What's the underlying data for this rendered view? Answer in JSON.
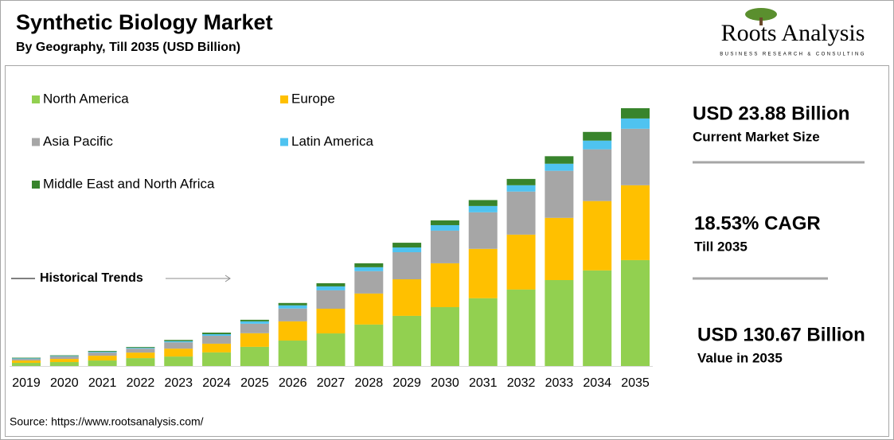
{
  "chart_data": {
    "type": "stacked_bar",
    "title": "Synthetic Biology Market",
    "subtitle": "By Geography, Till 2035 (USD Billion)",
    "logo": {
      "name": "Roots Analysis",
      "tagline": "BUSINESS RESEARCH & CONSULTING"
    },
    "categories": [
      "2019",
      "2020",
      "2021",
      "2022",
      "2023",
      "2024",
      "2025",
      "2026",
      "2027",
      "2028",
      "2029",
      "2030",
      "2031",
      "2032",
      "2033",
      "2034",
      "2035"
    ],
    "series": [
      {
        "name": "North America",
        "color": "#92d050",
        "values": [
          1.6,
          2.0,
          2.8,
          4.0,
          4.8,
          6.9,
          9.7,
          12.9,
          16.5,
          21.0,
          25.4,
          29.8,
          34.3,
          38.7,
          43.5,
          48.4,
          53.6
        ]
      },
      {
        "name": "Europe",
        "color": "#ffc000",
        "values": [
          1.2,
          1.6,
          2.4,
          2.8,
          4.0,
          4.4,
          6.9,
          9.7,
          12.5,
          15.7,
          18.5,
          22.2,
          25.0,
          27.8,
          31.5,
          35.1,
          37.9
        ]
      },
      {
        "name": "Asia Pacific",
        "color": "#a6a6a6",
        "values": [
          0.8,
          1.2,
          1.6,
          2.0,
          3.2,
          4.0,
          4.8,
          6.5,
          9.3,
          11.3,
          13.7,
          16.5,
          18.5,
          21.8,
          23.8,
          26.2,
          28.6
        ]
      },
      {
        "name": "Latin America",
        "color": "#4fc3f0",
        "values": [
          0.3,
          0.3,
          0.4,
          0.4,
          0.6,
          0.8,
          1.2,
          1.6,
          2.0,
          2.0,
          2.4,
          2.8,
          3.2,
          3.2,
          3.6,
          4.4,
          5.2
        ]
      },
      {
        "name": "Middle East and North Africa",
        "color": "#38842c",
        "values": [
          0.3,
          0.3,
          0.4,
          0.4,
          0.6,
          0.8,
          0.8,
          1.2,
          1.6,
          2.0,
          2.4,
          2.4,
          3.0,
          3.2,
          3.8,
          4.4,
          5.2
        ]
      }
    ],
    "historical_label": "Historical Trends",
    "annotations": [
      {
        "text": "USD 23.88 Billion",
        "subtext": "Current Market Size"
      },
      {
        "text": "18.53% CAGR",
        "subtext": "Till 2035"
      },
      {
        "text": "USD 130.67 Billion",
        "subtext": "Value in 2035"
      }
    ],
    "source": "Source: https://www.rootsanalysis.com/"
  }
}
